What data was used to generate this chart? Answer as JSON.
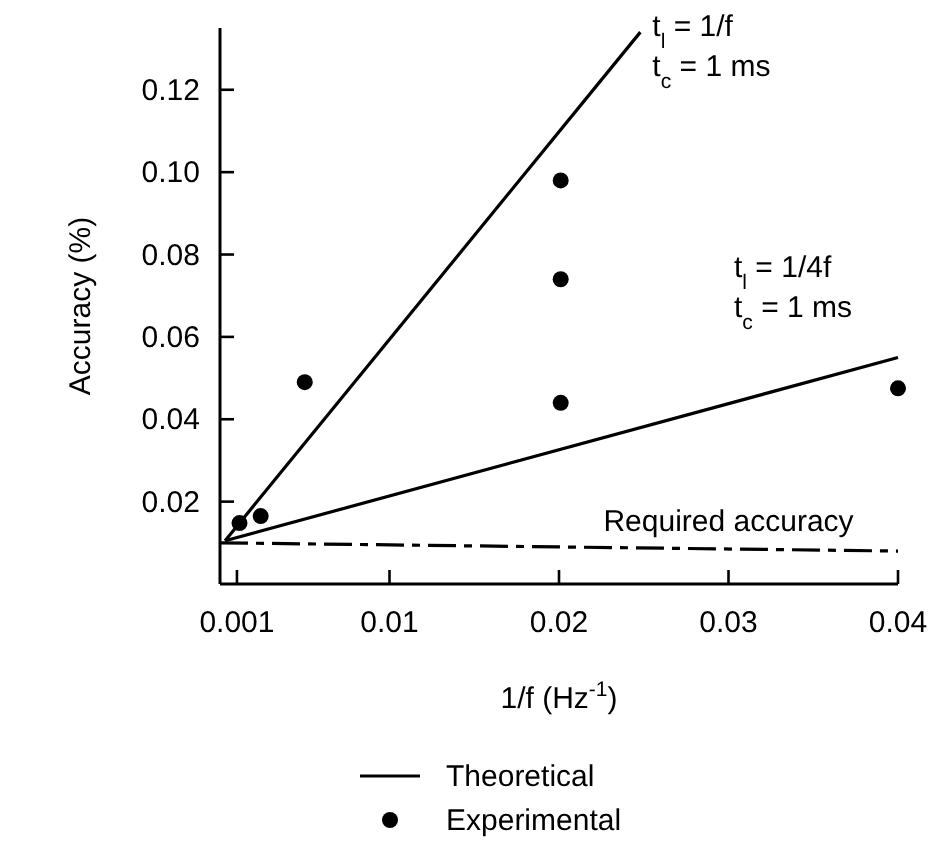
{
  "chart_data": {
    "type": "line",
    "xlabel": "1/f  (Hz$^{-1}$)",
    "ylabel": "Accuracy (%)",
    "xlim": [
      0,
      0.04
    ],
    "ylim": [
      0,
      0.135
    ],
    "xticks": [
      0.001,
      0.01,
      0.02,
      0.03,
      0.04
    ],
    "yticks": [
      0.02,
      0.04,
      0.06,
      0.08,
      {
        "value": 0.1,
        "label": "0.10"
      },
      0.12
    ],
    "grid": false,
    "legend": "bottom",
    "series": [
      {
        "name": "Theoretical",
        "color": "#000000",
        "line_style": "solid",
        "x": [
          0.0003,
          0.0248
        ],
        "values": [
          0.0105,
          0.134
        ]
      },
      {
        "color": "#000000",
        "line_style": "solid",
        "x": [
          0.0003,
          0.04
        ],
        "values": [
          0.0105,
          0.055
        ]
      },
      {
        "color": "#000000",
        "line_style": "dashed",
        "x": [
          0,
          0.04
        ],
        "values": [
          0.01,
          0.008
        ]
      },
      {
        "name": "Experimental",
        "type": "scatter",
        "color": "#000000",
        "marker": "circle",
        "x": [
          0.00115,
          0.0024,
          0.005,
          0.0201,
          0.0201,
          0.0201,
          0.04
        ],
        "values": [
          0.0148,
          0.0165,
          0.049,
          0.098,
          0.074,
          0.044,
          0.0475
        ]
      }
    ],
    "annotations": [
      {
        "text": "t$_{l}$ = 1/f\nt$_{c}$ = 1 ms",
        "x": 0.0248,
        "y": 0.134
      },
      {
        "text": "t$_{l}$ = 1/4f\nt$_{c}$ = 1 ms",
        "x": 0.04,
        "y": 0.055
      },
      {
        "text": "Required accuracy",
        "x": 0.03,
        "y": 0.008
      }
    ]
  }
}
